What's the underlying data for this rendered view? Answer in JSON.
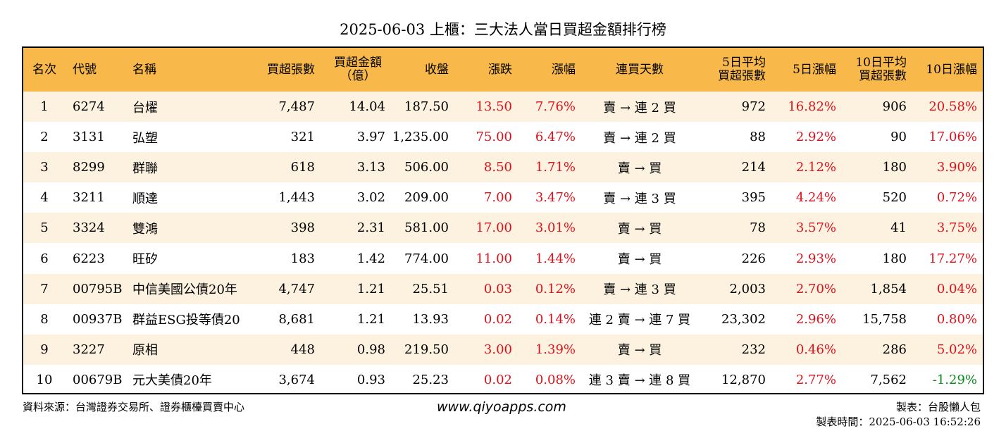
{
  "title": "2025-06-03 上櫃：三大法人當日買超金額排行榜",
  "colors": {
    "header_bg": "#f8b84a",
    "row_alt_bg": "#fdf2e0",
    "up": "#e0101a",
    "down": "#0a8a1a"
  },
  "headers": {
    "rank": "名次",
    "code": "代號",
    "name": "名稱",
    "net_lots": "買超張數",
    "net_amount_l1": "買超金額",
    "net_amount_l2": "（億）",
    "close": "收盤",
    "change": "漲跌",
    "change_pct": "漲幅",
    "streak": "連買天數",
    "avg5_l1": "5日平均",
    "avg5_l2": "買超張數",
    "pct5": "5日漲幅",
    "avg10_l1": "10日平均",
    "avg10_l2": "買超張數",
    "pct10": "10日漲幅"
  },
  "rows": [
    {
      "rank": "1",
      "code": "6274",
      "name": "台燿",
      "net_lots": "7,487",
      "net_amount": "14.04",
      "close": "187.50",
      "change": "13.50",
      "change_pct": "7.76%",
      "streak": "賣 → 連 2 買",
      "avg5": "972",
      "pct5": "16.82%",
      "avg10": "906",
      "pct10": "20.58%"
    },
    {
      "rank": "2",
      "code": "3131",
      "name": "弘塑",
      "net_lots": "321",
      "net_amount": "3.97",
      "close": "1,235.00",
      "change": "75.00",
      "change_pct": "6.47%",
      "streak": "賣 → 連 2 買",
      "avg5": "88",
      "pct5": "2.92%",
      "avg10": "90",
      "pct10": "17.06%"
    },
    {
      "rank": "3",
      "code": "8299",
      "name": "群聯",
      "net_lots": "618",
      "net_amount": "3.13",
      "close": "506.00",
      "change": "8.50",
      "change_pct": "1.71%",
      "streak": "賣 → 買",
      "avg5": "214",
      "pct5": "2.12%",
      "avg10": "180",
      "pct10": "3.90%"
    },
    {
      "rank": "4",
      "code": "3211",
      "name": "順達",
      "net_lots": "1,443",
      "net_amount": "3.02",
      "close": "209.00",
      "change": "7.00",
      "change_pct": "3.47%",
      "streak": "賣 → 連 3 買",
      "avg5": "395",
      "pct5": "4.24%",
      "avg10": "520",
      "pct10": "0.72%"
    },
    {
      "rank": "5",
      "code": "3324",
      "name": "雙鴻",
      "net_lots": "398",
      "net_amount": "2.31",
      "close": "581.00",
      "change": "17.00",
      "change_pct": "3.01%",
      "streak": "賣 → 買",
      "avg5": "78",
      "pct5": "3.57%",
      "avg10": "41",
      "pct10": "3.75%"
    },
    {
      "rank": "6",
      "code": "6223",
      "name": "旺矽",
      "net_lots": "183",
      "net_amount": "1.42",
      "close": "774.00",
      "change": "11.00",
      "change_pct": "1.44%",
      "streak": "賣 → 買",
      "avg5": "226",
      "pct5": "2.93%",
      "avg10": "180",
      "pct10": "17.27%"
    },
    {
      "rank": "7",
      "code": "00795B",
      "name": "中信美國公債20年",
      "net_lots": "4,747",
      "net_amount": "1.21",
      "close": "25.51",
      "change": "0.03",
      "change_pct": "0.12%",
      "streak": "賣 → 連 3 買",
      "avg5": "2,003",
      "pct5": "2.70%",
      "avg10": "1,854",
      "pct10": "0.04%"
    },
    {
      "rank": "8",
      "code": "00937B",
      "name": "群益ESG投等債20",
      "net_lots": "8,681",
      "net_amount": "1.21",
      "close": "13.93",
      "change": "0.02",
      "change_pct": "0.14%",
      "streak": "連 2 賣 → 連 7 買",
      "avg5": "23,302",
      "pct5": "2.96%",
      "avg10": "15,758",
      "pct10": "0.80%"
    },
    {
      "rank": "9",
      "code": "3227",
      "name": "原相",
      "net_lots": "448",
      "net_amount": "0.98",
      "close": "219.50",
      "change": "3.00",
      "change_pct": "1.39%",
      "streak": "賣 → 買",
      "avg5": "232",
      "pct5": "0.46%",
      "avg10": "286",
      "pct10": "5.02%"
    },
    {
      "rank": "10",
      "code": "00679B",
      "name": "元大美債20年",
      "net_lots": "3,674",
      "net_amount": "0.93",
      "close": "25.23",
      "change": "0.02",
      "change_pct": "0.08%",
      "streak": "連 3 賣 → 連 8 買",
      "avg5": "12,870",
      "pct5": "2.77%",
      "avg10": "7,562",
      "pct10": "-1.29%"
    }
  ],
  "footer": {
    "source": "資料來源：台灣證券交易所、證券櫃檯買賣中心",
    "website": "www.qiyoapps.com",
    "maker": "製表：台股懶人包",
    "made_time": "製表時間：2025-06-03 16:52:26"
  }
}
